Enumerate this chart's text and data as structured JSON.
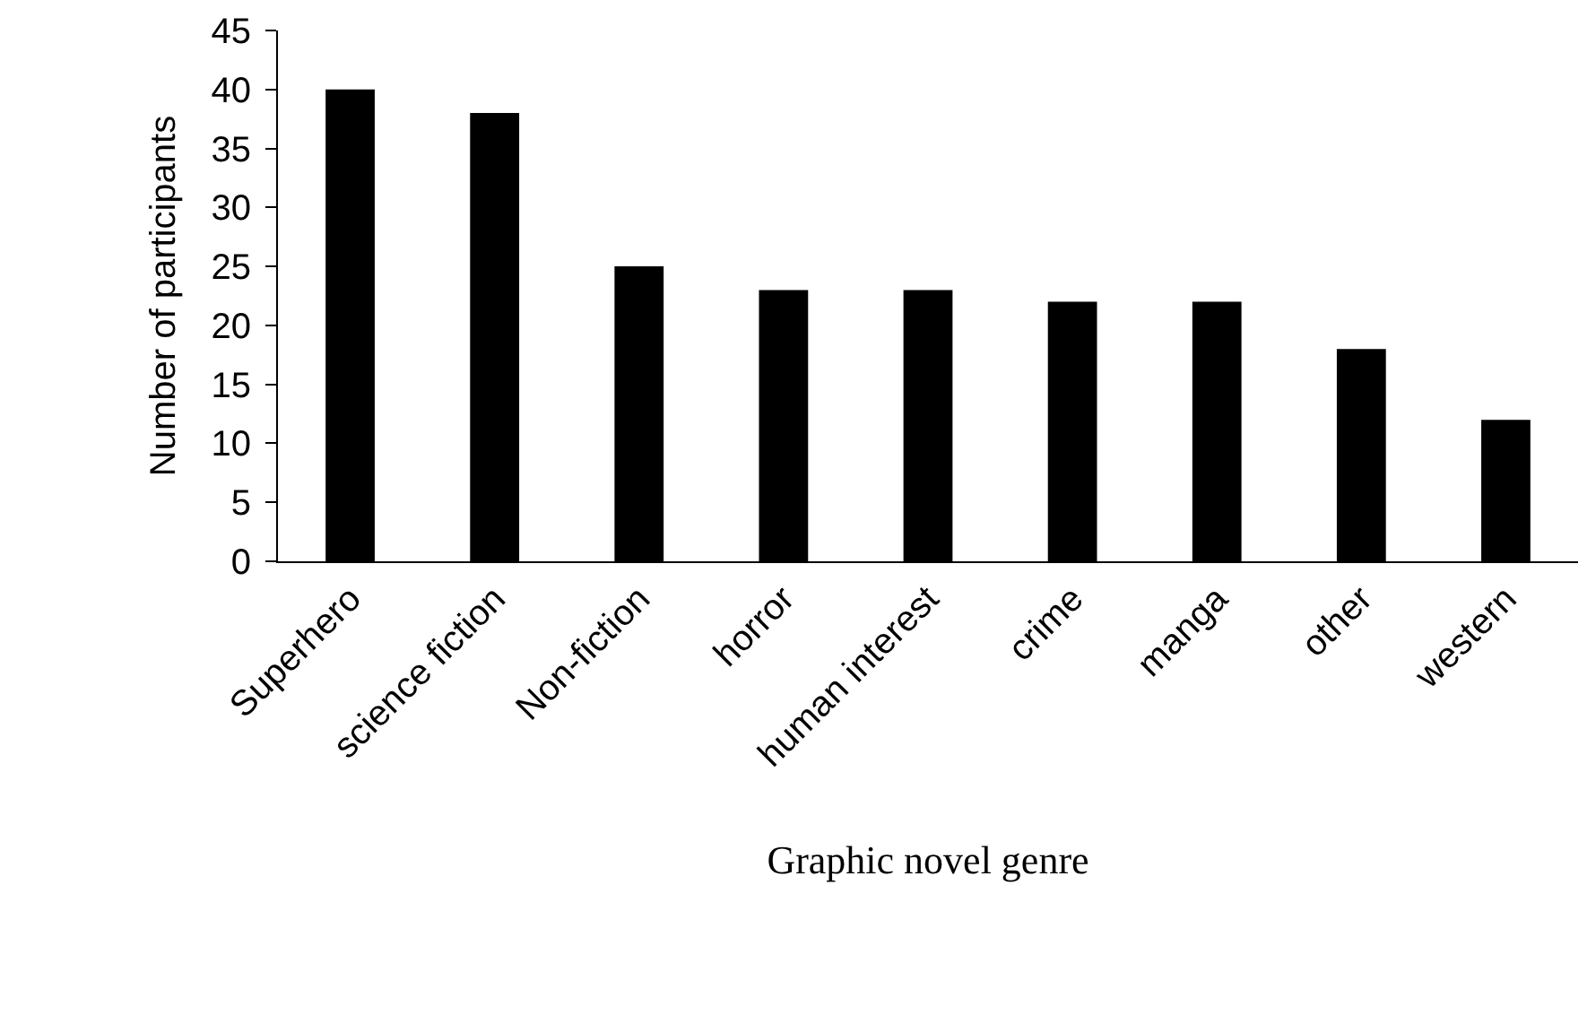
{
  "chart_data": {
    "type": "bar",
    "xlabel": "Graphic novel genre",
    "ylabel": "Number of participants",
    "categories": [
      "Superhero",
      "science fiction",
      "Non-fiction",
      "horror",
      "human interest",
      "crime",
      "manga",
      "other",
      "western"
    ],
    "values": [
      40,
      38,
      25,
      23,
      23,
      22,
      22,
      18,
      12
    ],
    "color": "#000000",
    "ylim": [
      0,
      45
    ],
    "yticks": [
      0,
      5,
      10,
      15,
      20,
      25,
      30,
      35,
      40,
      45
    ],
    "grid": false,
    "legend": false
  }
}
